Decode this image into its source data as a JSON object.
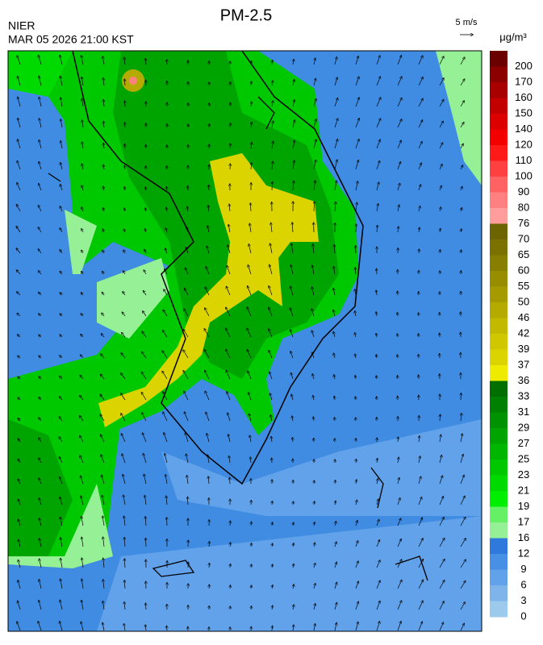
{
  "header": {
    "title": "PM-2.5",
    "agency": "NIER",
    "timestamp": "MAR 05 2026 21:00 KST",
    "wind_scale": "5 m/s",
    "unit": "μg/m³"
  },
  "colorbar": {
    "labels": [
      200,
      170,
      160,
      150,
      140,
      120,
      110,
      100,
      90,
      80,
      76,
      70,
      65,
      60,
      55,
      50,
      46,
      42,
      39,
      37,
      36,
      33,
      31,
      29,
      27,
      25,
      23,
      21,
      19,
      17,
      16,
      12,
      9,
      6,
      3,
      0
    ],
    "colors": [
      "#6a0000",
      "#8c0000",
      "#a80000",
      "#c20000",
      "#dc0000",
      "#f20000",
      "#ff1a1a",
      "#ff4040",
      "#ff6262",
      "#ff8080",
      "#ff9c9c",
      "#6b6400",
      "#7a7100",
      "#887f00",
      "#978d00",
      "#a59b00",
      "#b4aa00",
      "#c2b900",
      "#d0c700",
      "#dcd400",
      "#eeea00",
      "#006e00",
      "#008000",
      "#009200",
      "#00a400",
      "#00b600",
      "#00c800",
      "#00da00",
      "#00ee00",
      "#66f066",
      "#96f096",
      "#2f78dc",
      "#4890e6",
      "#62a2ea",
      "#7eb4ea",
      "#9ccaec"
    ]
  }
}
